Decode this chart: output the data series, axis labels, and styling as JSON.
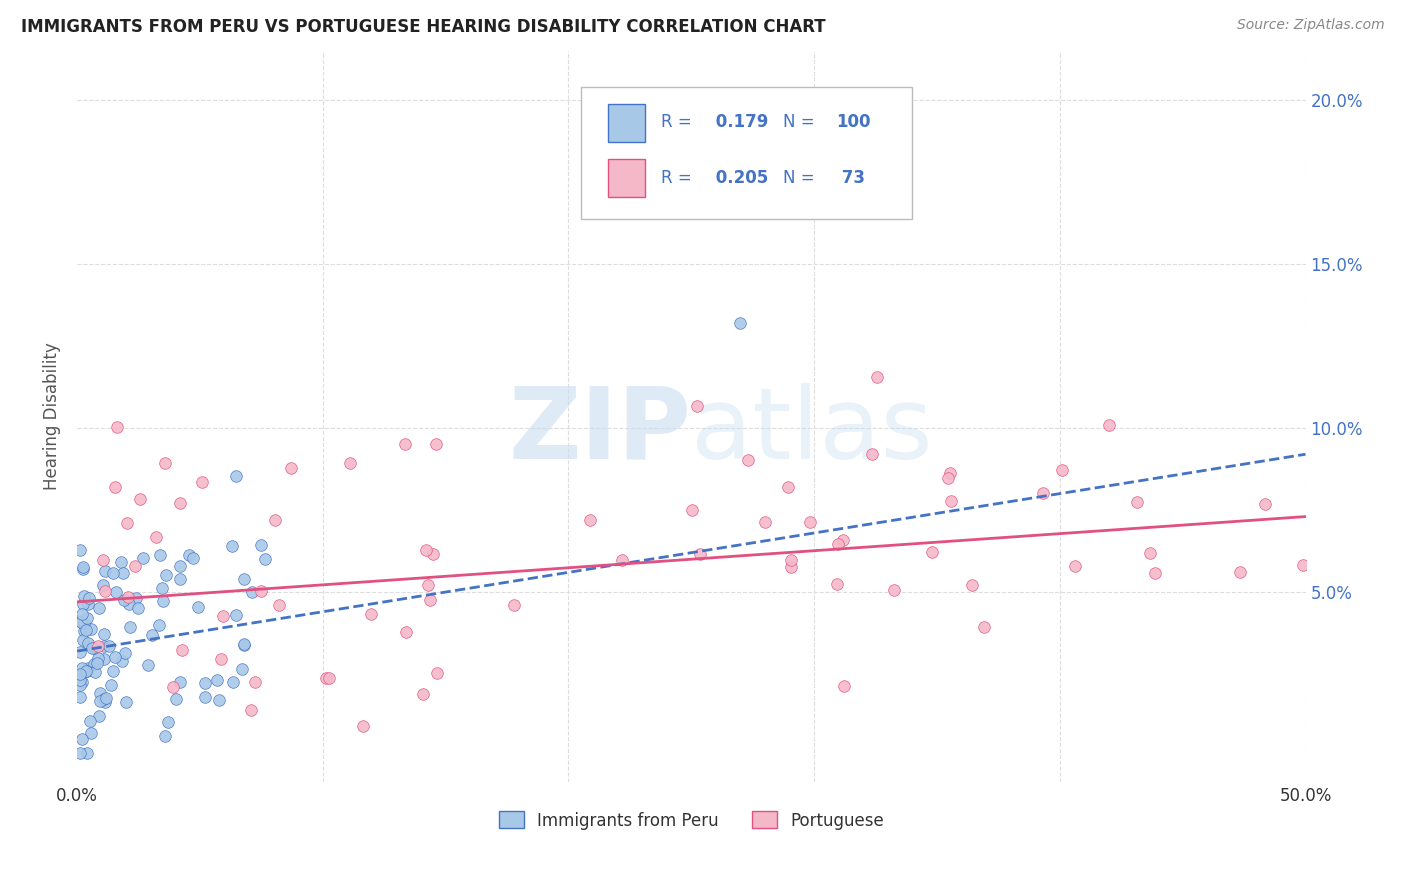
{
  "title": "IMMIGRANTS FROM PERU VS PORTUGUESE HEARING DISABILITY CORRELATION CHART",
  "source": "Source: ZipAtlas.com",
  "ylabel": "Hearing Disability",
  "x_min": 0.0,
  "x_max": 0.5,
  "y_min": -0.008,
  "y_max": 0.215,
  "peru_color": "#A8C8E8",
  "peru_color_line": "#4472C4",
  "portuguese_color": "#F4B8C8",
  "portuguese_color_line": "#E05080",
  "legend_text_color": "#4472C4",
  "y_tick_vals": [
    0.05,
    0.1,
    0.15,
    0.2
  ],
  "y_tick_labels": [
    "5.0%",
    "10.0%",
    "15.0%",
    "20.0%"
  ],
  "x_tick_vals": [
    0.0,
    0.1,
    0.2,
    0.3,
    0.4,
    0.5
  ],
  "grid_color": "#DDDDDD",
  "background_color": "#FFFFFF",
  "watermark": "ZIPatlas",
  "peru_trend": [
    0.032,
    0.092
  ],
  "portuguese_trend": [
    0.047,
    0.073
  ]
}
